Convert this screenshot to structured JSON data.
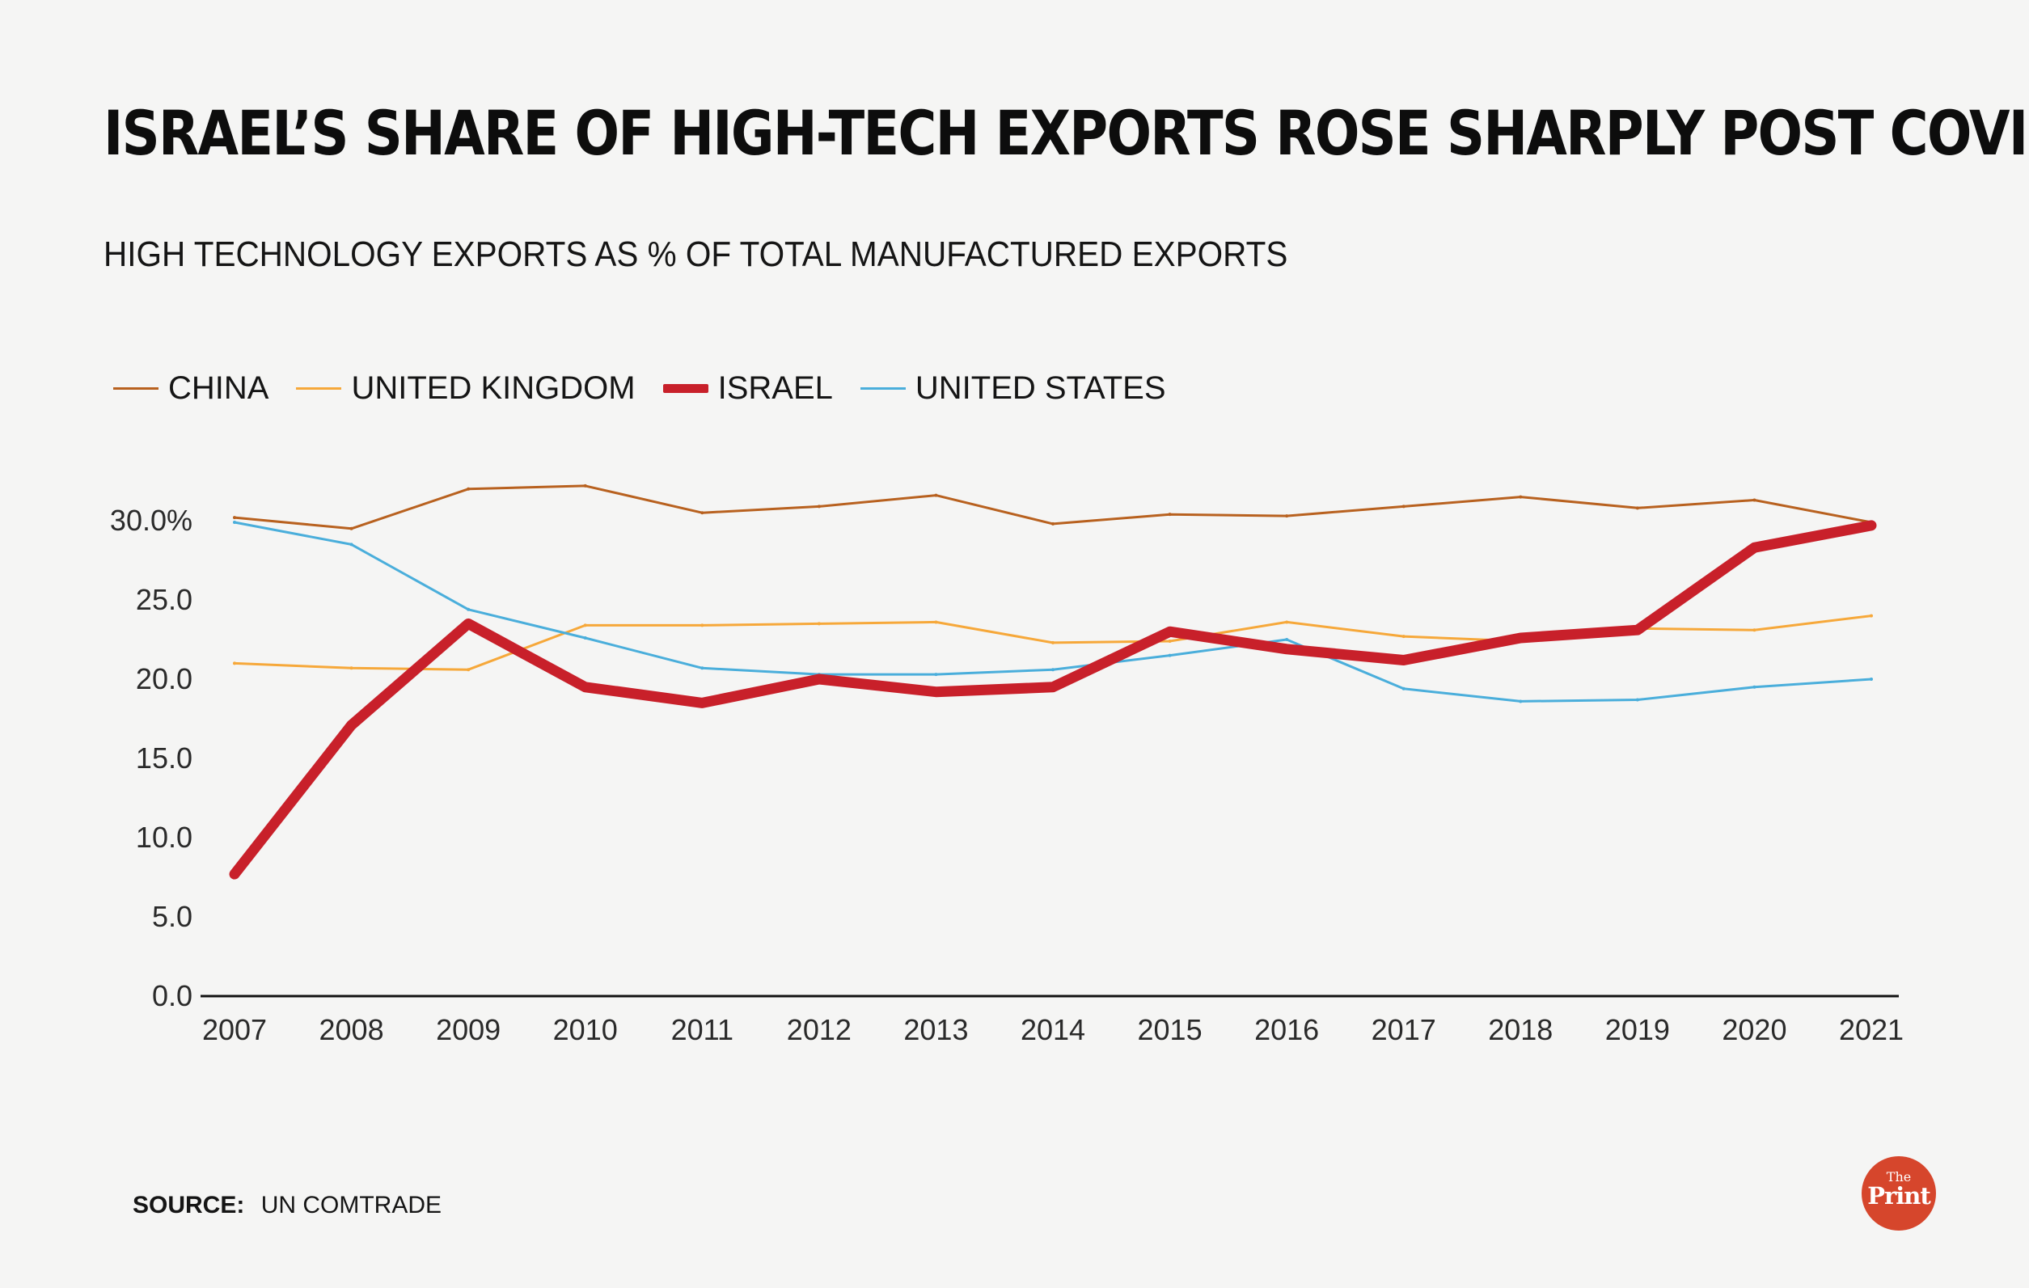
{
  "header": {
    "title": "ISRAEL’S SHARE OF HIGH-TECH EXPORTS ROSE SHARPLY POST COVID",
    "subtitle": "HIGH TECHNOLOGY EXPORTS AS  % OF TOTAL MANUFACTURED EXPORTS"
  },
  "footer": {
    "source_label": "SOURCE:",
    "source_value": "UN COMTRADE"
  },
  "logo": {
    "line1": "The",
    "line2": "Print"
  },
  "colors": {
    "china": "#b8611f",
    "united_kingdom": "#f6a83a",
    "israel": "#c8202a",
    "united_states": "#4aaedb"
  },
  "chart_data": {
    "type": "line",
    "title": "ISRAEL’S SHARE OF HIGH-TECH EXPORTS ROSE SHARPLY POST COVID",
    "subtitle": "HIGH TECHNOLOGY EXPORTS AS  % OF TOTAL MANUFACTURED EXPORTS",
    "xlabel": "",
    "ylabel": "",
    "ylim": [
      0,
      30
    ],
    "yticks": [
      0,
      5,
      10,
      15,
      20,
      25,
      30
    ],
    "ytick_labels": [
      "0.0",
      "5.0",
      "10.0",
      "15.0",
      "20.0",
      "25.0",
      "30.0%"
    ],
    "categories": [
      "2007",
      "2008",
      "2009",
      "2010",
      "2011",
      "2012",
      "2013",
      "2014",
      "2015",
      "2016",
      "2017",
      "2018",
      "2019",
      "2020",
      "2021"
    ],
    "legend_position": "top-left",
    "grid": false,
    "series": [
      {
        "name": "CHINA",
        "key": "china",
        "emphasis": false,
        "values": [
          30.2,
          29.5,
          32.0,
          32.2,
          30.5,
          30.9,
          31.6,
          29.8,
          30.4,
          30.3,
          30.9,
          31.5,
          30.8,
          31.3,
          29.9
        ]
      },
      {
        "name": "UNITED KINGDOM",
        "key": "united_kingdom",
        "emphasis": false,
        "values": [
          21.0,
          20.7,
          20.6,
          23.4,
          23.4,
          23.5,
          23.6,
          22.3,
          22.4,
          23.6,
          22.7,
          22.4,
          23.2,
          23.1,
          24.0
        ]
      },
      {
        "name": "ISRAEL",
        "key": "israel",
        "emphasis": true,
        "values": [
          7.7,
          17.1,
          23.5,
          19.5,
          18.5,
          20.0,
          19.2,
          19.5,
          23.0,
          21.9,
          21.2,
          22.6,
          23.1,
          28.3,
          29.7
        ]
      },
      {
        "name": "UNITED STATES",
        "key": "united_states",
        "emphasis": false,
        "values": [
          29.9,
          28.5,
          24.4,
          22.6,
          20.7,
          20.3,
          20.3,
          20.6,
          21.5,
          22.5,
          19.4,
          18.6,
          18.7,
          19.5,
          20.0
        ]
      }
    ]
  }
}
